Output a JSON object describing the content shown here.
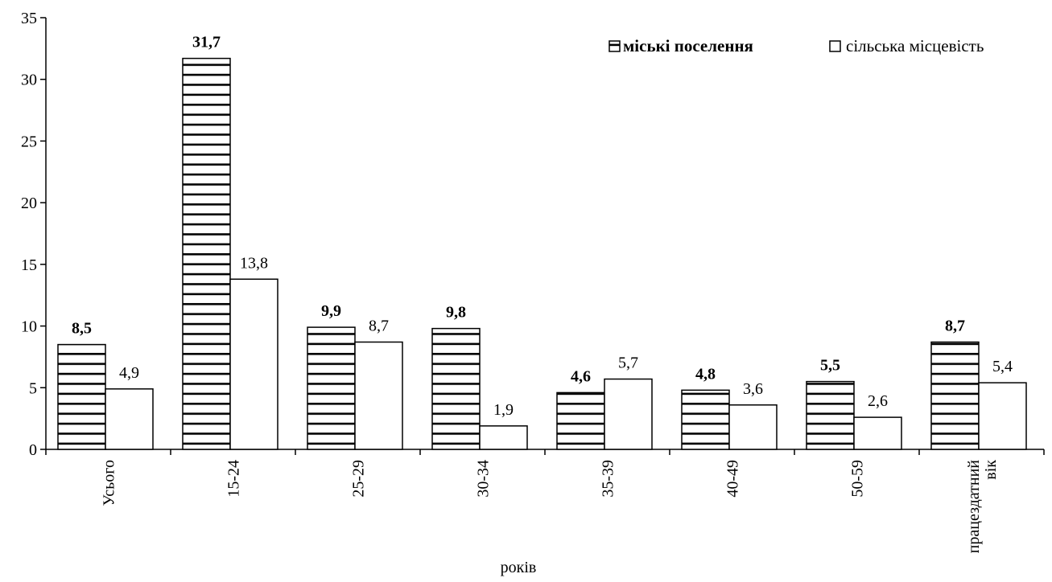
{
  "chart_data": {
    "type": "bar",
    "categories": [
      "Усього",
      "15-24",
      "25-29",
      "30-34",
      "35-39",
      "40-49",
      "50-59",
      "працездатний вік"
    ],
    "category_lines": [
      [
        "Усього"
      ],
      [
        "15-24"
      ],
      [
        "25-29"
      ],
      [
        "30-34"
      ],
      [
        "35-39"
      ],
      [
        "40-49"
      ],
      [
        "50-59"
      ],
      [
        "працездатний",
        "вік"
      ]
    ],
    "series": [
      {
        "name": "міські поселення",
        "values": [
          8.5,
          31.7,
          9.9,
          9.8,
          4.6,
          4.8,
          5.5,
          8.7
        ],
        "labels": [
          "8,5",
          "31,7",
          "9,9",
          "9,8",
          "4,6",
          "4,8",
          "5,5",
          "8,7"
        ],
        "pattern": "horizontal-stripes",
        "label_style": "bold"
      },
      {
        "name": "сільська місцевість",
        "values": [
          4.9,
          13.8,
          8.7,
          1.9,
          5.7,
          3.6,
          2.6,
          5.4
        ],
        "labels": [
          "4,9",
          "13,8",
          "8,7",
          "1,9",
          "5,7",
          "3,6",
          "2,6",
          "5,4"
        ],
        "pattern": "none",
        "label_style": "normal"
      }
    ],
    "xlabel": "років",
    "ylabel": "",
    "ylim": [
      0,
      35
    ],
    "yticks": [
      0,
      5,
      10,
      15,
      20,
      25,
      30,
      35
    ],
    "grid": false,
    "legend_position": "top-right",
    "colors": {
      "stroke": "#000000",
      "fill": "#ffffff"
    }
  }
}
